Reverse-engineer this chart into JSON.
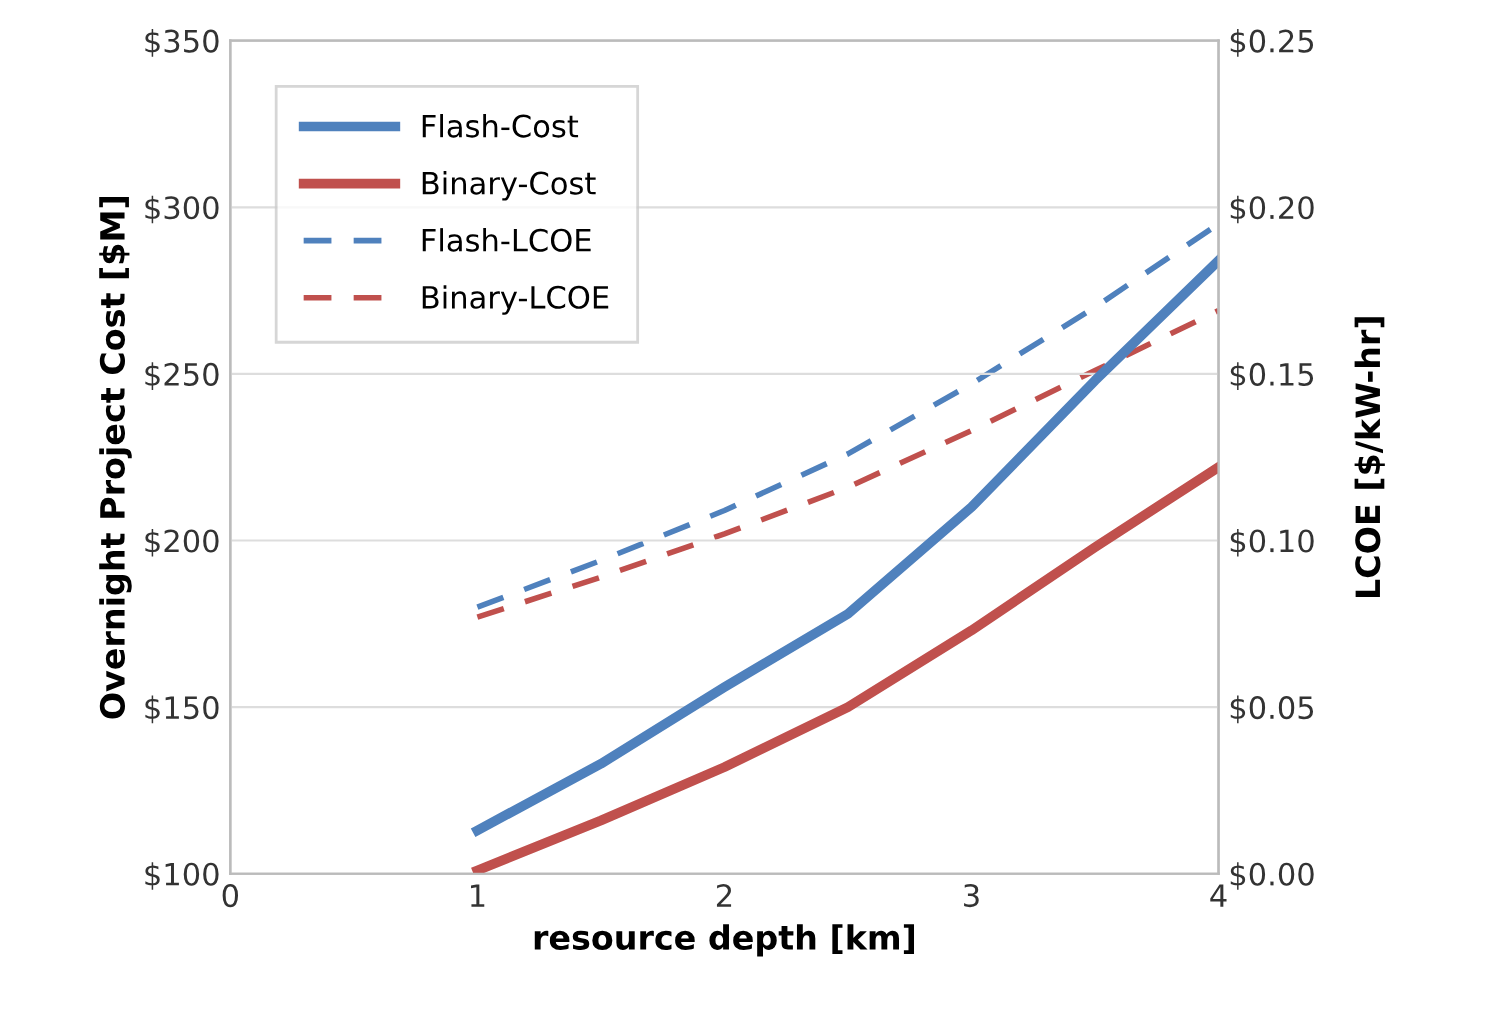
{
  "chart_data": {
    "type": "line",
    "xlabel": "resource depth [km]",
    "ylabel": "Overnight Project Cost [$M]",
    "y2label": "LCOE [$/kW-hr]",
    "xlim": [
      0,
      4
    ],
    "xticks": [
      0,
      1,
      2,
      3,
      4
    ],
    "ylim": [
      100,
      350
    ],
    "yticks": [
      {
        "value": 100,
        "label": "$100"
      },
      {
        "value": 150,
        "label": "$150"
      },
      {
        "value": 200,
        "label": "$200"
      },
      {
        "value": 250,
        "label": "$250"
      },
      {
        "value": 300,
        "label": "$300"
      },
      {
        "value": 350,
        "label": "$350"
      }
    ],
    "y2lim": [
      0,
      0.25
    ],
    "y2ticks": [
      {
        "value": 0,
        "label": "$0.00"
      },
      {
        "value": 0.05,
        "label": "$0.05"
      },
      {
        "value": 0.1,
        "label": "$0.10"
      },
      {
        "value": 0.15,
        "label": "$0.15"
      },
      {
        "value": 0.2,
        "label": "$0.20"
      },
      {
        "value": 0.25,
        "label": "$0.25"
      }
    ],
    "grid": "y",
    "legend": "top left",
    "marker": "none",
    "x": [
      1,
      1.5,
      2,
      2.5,
      3,
      3.5,
      4
    ],
    "series": [
      {
        "name": "Flash-Cost",
        "color": "#4f81bd",
        "line_style": "solid",
        "values": [
          113,
          133,
          156,
          178,
          210,
          248,
          284
        ]
      },
      {
        "name": "Binary-Cost",
        "color": "#c0504d",
        "line_style": "solid",
        "values": [
          101,
          116,
          132,
          150,
          173,
          198,
          222
        ]
      },
      {
        "name": "Flash-LCOE",
        "color": "#4f81bd",
        "line_style": "dashed",
        "axis": "y2",
        "values": [
          0.08,
          0.094,
          0.109,
          0.126,
          0.147,
          0.17,
          0.195
        ]
      },
      {
        "name": "Binary-LCOE",
        "color": "#c0504d",
        "line_style": "dashed",
        "axis": "y2",
        "values": [
          0.077,
          0.089,
          0.102,
          0.116,
          0.133,
          0.151,
          0.169
        ]
      }
    ]
  }
}
